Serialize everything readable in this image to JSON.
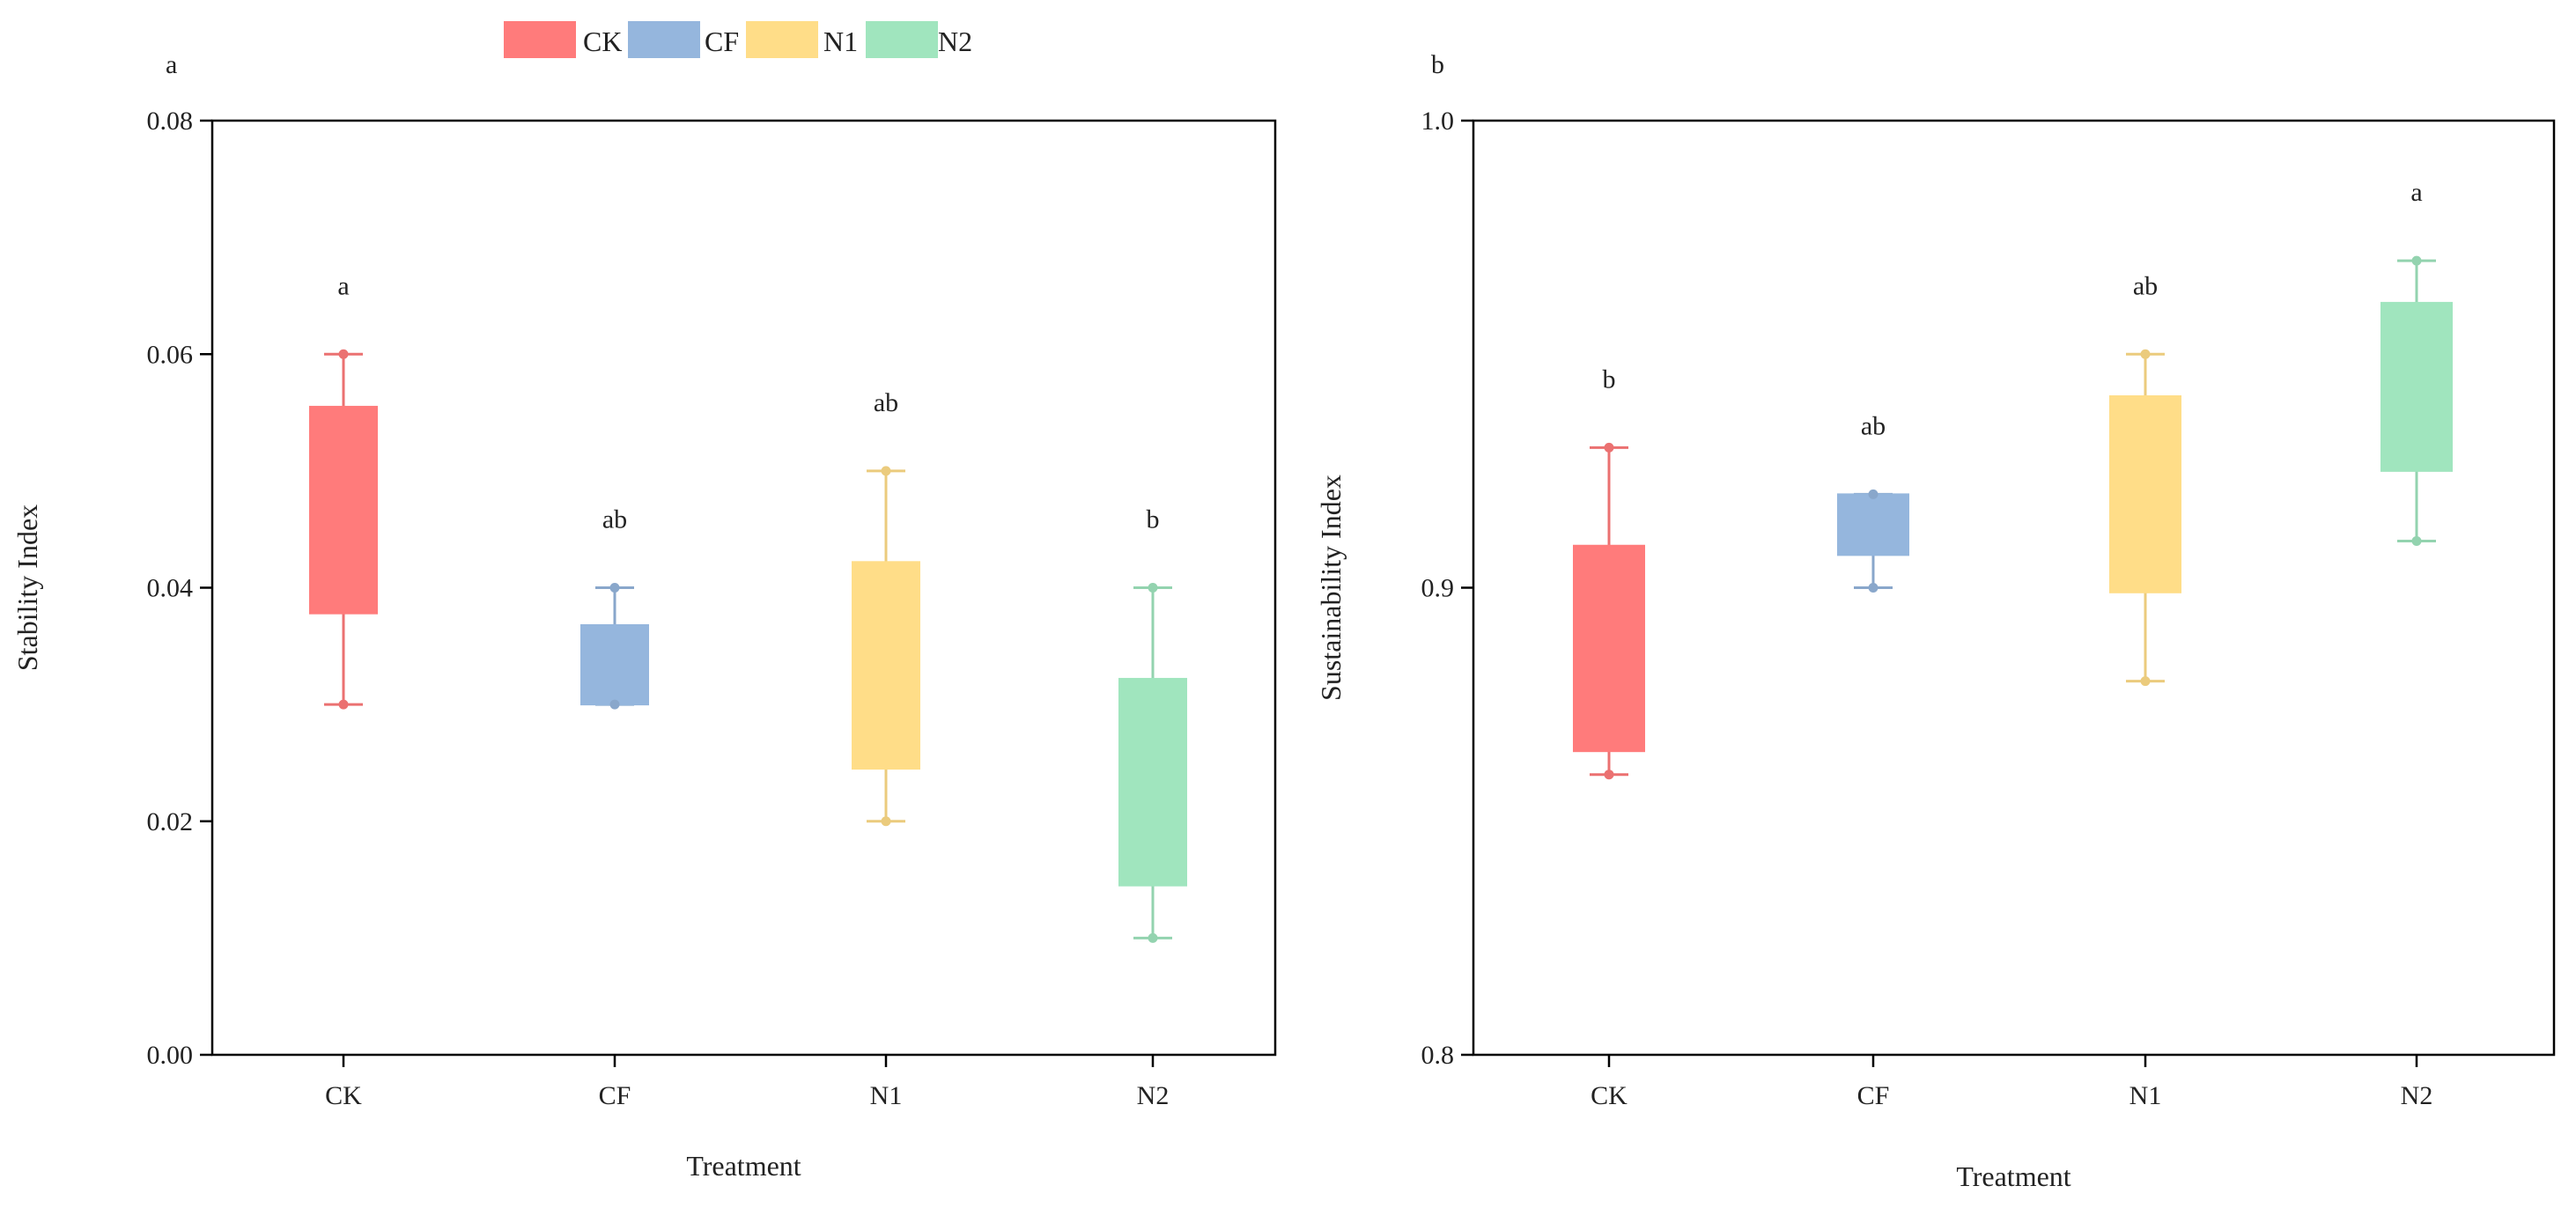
{
  "legend": [
    {
      "name": "CK",
      "color": "#ff7b7b"
    },
    {
      "name": "CF",
      "color": "#95b6dd"
    },
    {
      "name": "N1",
      "color": "#ffdd88"
    },
    {
      "name": "N2",
      "color": "#a0e5be"
    }
  ],
  "chart_data": [
    {
      "type": "box",
      "panel_label": "a",
      "title": "",
      "xlabel": "Treatment",
      "ylabel": "Stability Index",
      "categories": [
        "CK",
        "CF",
        "N1",
        "N2"
      ],
      "ylim": [
        0.0,
        0.08
      ],
      "yticks": [
        "0.00",
        "0.02",
        "0.04",
        "0.06",
        "0.08"
      ],
      "yticks_values": [
        0.0,
        0.02,
        0.04,
        0.06,
        0.08
      ],
      "boxes": [
        {
          "category": "CK",
          "min": 0.03,
          "q1": 0.0378,
          "q3": 0.0555,
          "max": 0.06,
          "letter": "a",
          "color": "#ff7b7b"
        },
        {
          "category": "CF",
          "min": 0.03,
          "q1": 0.03,
          "q3": 0.0368,
          "max": 0.04,
          "letter": "ab",
          "color": "#95b6dd"
        },
        {
          "category": "N1",
          "min": 0.02,
          "q1": 0.0245,
          "q3": 0.0422,
          "max": 0.05,
          "letter": "ab",
          "color": "#ffdd88"
        },
        {
          "category": "N2",
          "min": 0.01,
          "q1": 0.0145,
          "q3": 0.0322,
          "max": 0.04,
          "letter": "b",
          "color": "#a0e5be"
        }
      ]
    },
    {
      "type": "box",
      "panel_label": "b",
      "title": "",
      "xlabel": "Treatment",
      "ylabel": "Sustainability Index",
      "categories": [
        "CK",
        "CF",
        "N1",
        "N2"
      ],
      "ylim": [
        0.8,
        1.0
      ],
      "yticks": [
        "0.8",
        "0.9",
        "1.0"
      ],
      "yticks_values": [
        0.8,
        0.9,
        1.0
      ],
      "boxes": [
        {
          "category": "CK",
          "min": 0.86,
          "q1": 0.865,
          "q3": 0.909,
          "max": 0.93,
          "letter": "b",
          "color": "#ff7b7b"
        },
        {
          "category": "CF",
          "min": 0.9,
          "q1": 0.907,
          "q3": 0.92,
          "max": 0.92,
          "letter": "ab",
          "color": "#95b6dd"
        },
        {
          "category": "N1",
          "min": 0.88,
          "q1": 0.899,
          "q3": 0.941,
          "max": 0.95,
          "letter": "ab",
          "color": "#ffdd88"
        },
        {
          "category": "N2",
          "min": 0.91,
          "q1": 0.925,
          "q3": 0.961,
          "max": 0.97,
          "letter": "a",
          "color": "#a0e5be"
        }
      ]
    }
  ]
}
